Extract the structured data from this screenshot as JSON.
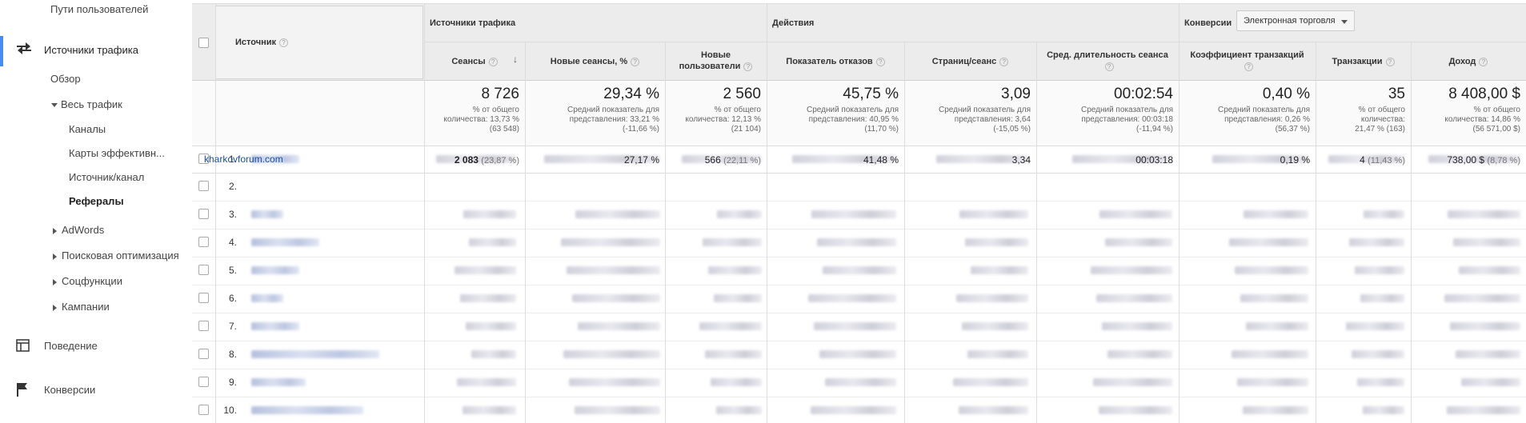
{
  "sidebar": {
    "user_paths": "Пути пользователей",
    "traffic_sources": "Источники трафика",
    "overview": "Обзор",
    "all_traffic": "Весь трафик",
    "channels": "Каналы",
    "treemaps": "Карты эффективн...",
    "source_medium": "Источник/канал",
    "referrals": "Рефералы",
    "adwords": "AdWords",
    "seo": "Поисковая оптимизация",
    "social": "Соцфункции",
    "campaigns": "Кампании",
    "behavior": "Поведение",
    "conversions": "Конверсии"
  },
  "table": {
    "col_source": "Источник",
    "group_acquisition": "Источники трафика",
    "group_behavior": "Действия",
    "group_conversions": "Конверсии",
    "conversion_select": "Электронная торговля",
    "col_sessions": "Сеансы",
    "col_new_sessions": "Новые сеансы, %",
    "col_new_users_1": "Новые",
    "col_new_users_2": "пользователи",
    "col_bounce": "Показатель отказов",
    "col_pages": "Страниц/сеанс",
    "col_duration": "Сред. длительность сеанса",
    "col_conv_rate": "Коэффициент транзакций",
    "col_transactions": "Транзакции",
    "col_revenue": "Доход",
    "totals": {
      "sessions": "8 726",
      "sessions_sub1": "% от общего",
      "sessions_sub2": "количества: 13,73 %",
      "sessions_sub3": "(63 548)",
      "new_sessions": "29,34 %",
      "new_sessions_sub1": "Средний показатель для",
      "new_sessions_sub2": "представления: 33,21 %",
      "new_sessions_sub3": "(-11,66 %)",
      "new_users": "2 560",
      "new_users_sub1": "% от общего",
      "new_users_sub2": "количества: 12,13 %",
      "new_users_sub3": "(21 104)",
      "bounce": "45,75 %",
      "bounce_sub1": "Средний показатель для",
      "bounce_sub2": "представления: 40,95 %",
      "bounce_sub3": "(11,70 %)",
      "pages": "3,09",
      "pages_sub1": "Средний показатель для",
      "pages_sub2": "представления: 3,64",
      "pages_sub3": "(-15,05 %)",
      "duration": "00:02:54",
      "duration_sub1": "Средний показатель для",
      "duration_sub2": "представления: 00:03:18",
      "duration_sub3": "(-11,94 %)",
      "conv_rate": "0,40 %",
      "conv_rate_sub1": "Средний показатель для",
      "conv_rate_sub2": "представления: 0,26 %",
      "conv_rate_sub3": "(56,37 %)",
      "transactions": "35",
      "transactions_sub1": "% от общего",
      "transactions_sub2": "количества:",
      "transactions_sub3": "21,47 % (163)",
      "revenue": "8 408,00 $",
      "revenue_sub1": "% от общего",
      "revenue_sub2": "количества: 14,86 %",
      "revenue_sub3": "(56 571,00 $)"
    },
    "row_numbers": [
      "1.",
      "2.",
      "3.",
      "4.",
      "5.",
      "6.",
      "7.",
      "8.",
      "9.",
      "10."
    ],
    "row2": {
      "source": "kharkovforum.com",
      "sessions": "2 083",
      "sessions_pct": "(23,87 %)",
      "new_sessions": "27,17 %",
      "new_users": "566",
      "new_users_pct": "(22,11 %)",
      "bounce": "41,48 %",
      "pages": "3,34",
      "duration": "00:03:18",
      "conv_rate": "0,19 %",
      "transactions": "4",
      "transactions_pct": "(11,43 %)",
      "revenue": "738,00 $",
      "revenue_pct": "(8,78 %)"
    }
  }
}
